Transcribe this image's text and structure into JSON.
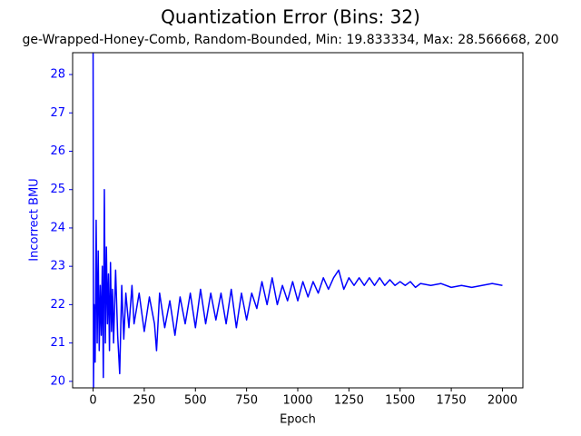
{
  "chart_data": {
    "type": "line",
    "title": "Quantization Error (Bins: 32)",
    "subtitle": "ge-Wrapped-Honey-Comb, Random-Bounded, Min: 19.833334, Max: 28.566668, 200",
    "xlabel": "Epoch",
    "ylabel": "Incorrect BMU",
    "xlim": [
      -100,
      2100
    ],
    "ylim": [
      19.83,
      28.57
    ],
    "xticks": [
      0,
      250,
      500,
      750,
      1000,
      1250,
      1500,
      1750,
      2000
    ],
    "yticks": [
      20,
      21,
      22,
      23,
      24,
      25,
      26,
      27,
      28
    ],
    "x": [
      0,
      2,
      5,
      10,
      15,
      20,
      25,
      30,
      35,
      40,
      45,
      50,
      55,
      60,
      65,
      70,
      75,
      80,
      85,
      90,
      95,
      100,
      110,
      120,
      130,
      140,
      150,
      160,
      175,
      190,
      200,
      225,
      250,
      275,
      300,
      310,
      325,
      350,
      375,
      400,
      425,
      450,
      475,
      500,
      525,
      550,
      575,
      600,
      625,
      650,
      675,
      700,
      725,
      750,
      775,
      800,
      825,
      850,
      875,
      900,
      925,
      950,
      975,
      1000,
      1025,
      1050,
      1075,
      1100,
      1125,
      1150,
      1175,
      1200,
      1225,
      1250,
      1275,
      1300,
      1325,
      1350,
      1375,
      1400,
      1425,
      1450,
      1475,
      1500,
      1525,
      1550,
      1575,
      1600,
      1650,
      1700,
      1750,
      1800,
      1850,
      1900,
      1950,
      2000
    ],
    "series": [
      {
        "name": "Incorrect BMU",
        "color": "#0000ff",
        "values": [
          28.57,
          19.83,
          22,
          20.5,
          24.2,
          21,
          23.4,
          20.8,
          22.5,
          21.2,
          23,
          20.1,
          25,
          21,
          23.5,
          21.5,
          22.8,
          20.8,
          23.1,
          21.3,
          22.4,
          21,
          22.9,
          21.2,
          20.2,
          22.5,
          21.1,
          22.3,
          21.4,
          22.5,
          21.5,
          22.3,
          21.3,
          22.2,
          21.5,
          20.8,
          22.3,
          21.4,
          22.1,
          21.2,
          22.2,
          21.5,
          22.3,
          21.4,
          22.4,
          21.5,
          22.3,
          21.6,
          22.3,
          21.5,
          22.4,
          21.4,
          22.3,
          21.6,
          22.3,
          21.9,
          22.6,
          22.0,
          22.7,
          22.0,
          22.5,
          22.1,
          22.6,
          22.1,
          22.6,
          22.2,
          22.6,
          22.3,
          22.7,
          22.4,
          22.7,
          22.9,
          22.4,
          22.7,
          22.5,
          22.7,
          22.5,
          22.7,
          22.5,
          22.7,
          22.5,
          22.65,
          22.5,
          22.6,
          22.5,
          22.6,
          22.45,
          22.55,
          22.5,
          22.55,
          22.45,
          22.5,
          22.45,
          22.5,
          22.55,
          22.5
        ]
      }
    ]
  }
}
